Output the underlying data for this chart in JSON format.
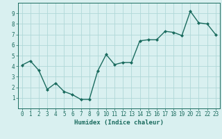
{
  "x": [
    0,
    1,
    2,
    3,
    4,
    5,
    6,
    7,
    8,
    9,
    10,
    11,
    12,
    13,
    14,
    15,
    16,
    17,
    18,
    19,
    20,
    21,
    22,
    23
  ],
  "y": [
    4.1,
    4.5,
    3.6,
    1.8,
    2.4,
    1.6,
    1.3,
    0.85,
    0.85,
    3.55,
    5.1,
    4.15,
    4.35,
    4.35,
    6.4,
    6.5,
    6.5,
    7.3,
    7.2,
    6.9,
    9.2,
    8.1,
    8.0,
    7.0
  ],
  "line_color": "#1a6b5e",
  "marker": "D",
  "marker_size": 2,
  "line_width": 1.0,
  "bg_color": "#d9f0f0",
  "grid_color": "#b0d8d8",
  "xlabel": "Humidex (Indice chaleur)",
  "xlabel_fontsize": 6.5,
  "tick_fontsize": 5.5,
  "ylim": [
    0,
    10
  ],
  "xlim": [
    -0.5,
    23.5
  ],
  "yticks": [
    1,
    2,
    3,
    4,
    5,
    6,
    7,
    8,
    9
  ],
  "xticks": [
    0,
    1,
    2,
    3,
    4,
    5,
    6,
    7,
    8,
    9,
    10,
    11,
    12,
    13,
    14,
    15,
    16,
    17,
    18,
    19,
    20,
    21,
    22,
    23
  ]
}
